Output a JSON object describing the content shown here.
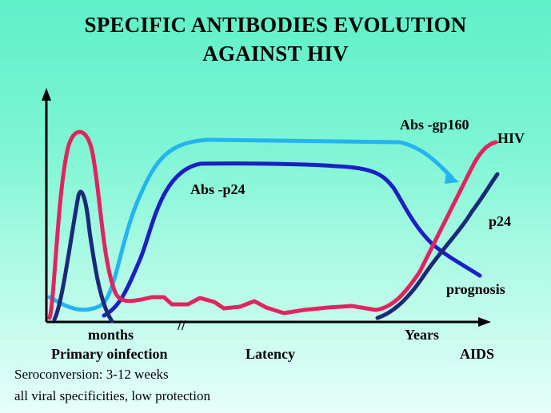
{
  "title": {
    "line1": "SPECIFIC ANTIBODIES EVOLUTION",
    "line2": "AGAINST HIV"
  },
  "curve_labels": {
    "abs_gp160": "Abs -gp160",
    "hiv": "HIV",
    "abs_p24": "Abs -p24",
    "p24": "p24",
    "prognosis": "prognosis"
  },
  "axis_labels": {
    "months": "months",
    "break_mark": "//",
    "years": "Years"
  },
  "phases": {
    "primary": "Primary oinfection",
    "latency": "Latency",
    "aids": "AIDS"
  },
  "notes": {
    "line1": "Seroconversion: 3-12 weeks",
    "line2": "all viral specificities, low protection"
  },
  "colors": {
    "hiv_curve": "#e0245e",
    "gp160_curve": "#25b4ef",
    "p24_antibody_curve": "#1c1fc4",
    "p24_antigen_curve": "#1a2a78",
    "axis": "#000000"
  }
}
